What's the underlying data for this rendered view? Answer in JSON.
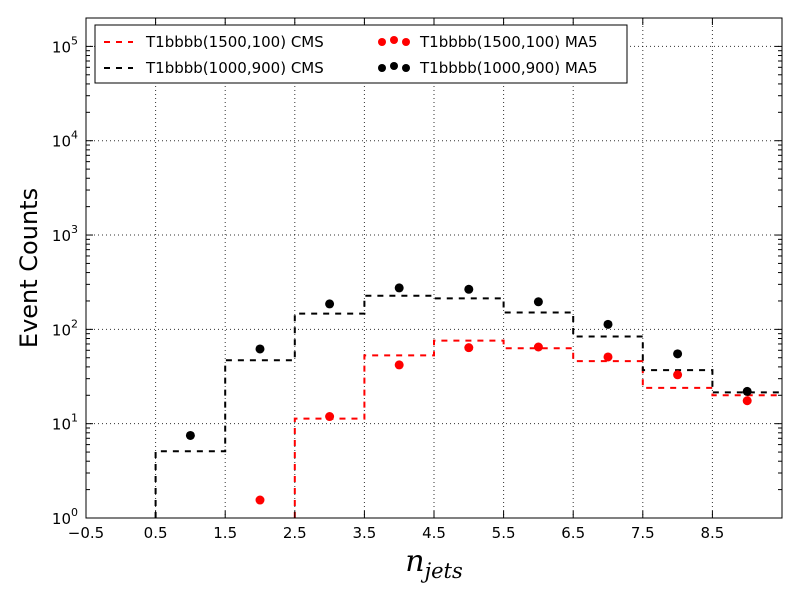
{
  "chart_data": {
    "type": "line",
    "xlabel_base": "n",
    "xlabel_sub": "jets",
    "ylabel": "Event Counts",
    "xlim": [
      -0.5,
      9.5
    ],
    "ylim": [
      1,
      200000
    ],
    "yscale": "log",
    "grid": true,
    "legend_position": "top",
    "x_ticks": [
      -0.5,
      0.5,
      1.5,
      2.5,
      3.5,
      4.5,
      5.5,
      6.5,
      7.5,
      8.5
    ],
    "x_tick_labels": [
      "−0.5",
      "0.5",
      "1.5",
      "2.5",
      "3.5",
      "4.5",
      "5.5",
      "6.5",
      "7.5",
      "8.5"
    ],
    "y_ticks": [
      {
        "value": 1,
        "base": "10",
        "exp": "0"
      },
      {
        "value": 10,
        "base": "10",
        "exp": "1"
      },
      {
        "value": 100,
        "base": "10",
        "exp": "2"
      },
      {
        "value": 1000,
        "base": "10",
        "exp": "3"
      },
      {
        "value": 10000,
        "base": "10",
        "exp": "4"
      },
      {
        "value": 100000,
        "base": "10",
        "exp": "5"
      }
    ],
    "series": [
      {
        "name": "T1bbbb(1500,100) CMS",
        "kind": "step",
        "color": "#ff0000",
        "edges": [
          2.5,
          3.5,
          4.5,
          5.5,
          6.5,
          7.5,
          8.5,
          9.5
        ],
        "values": [
          11.3,
          53,
          76,
          63,
          46,
          24,
          20
        ]
      },
      {
        "name": "T1bbbb(1000,900) CMS",
        "kind": "step",
        "color": "#000000",
        "edges": [
          0.5,
          1.5,
          2.5,
          3.5,
          4.5,
          5.5,
          6.5,
          7.5,
          8.5,
          9.5
        ],
        "values": [
          5.1,
          47,
          147,
          227,
          213,
          151,
          84,
          37,
          21.5
        ]
      },
      {
        "name": "T1bbbb(1500,100) MA5",
        "kind": "scatter",
        "color": "#ff0000",
        "x": [
          2,
          3,
          4,
          5,
          6,
          7,
          8,
          9
        ],
        "y": [
          1.55,
          11.9,
          42,
          64,
          65,
          51,
          33,
          17.5
        ]
      },
      {
        "name": "T1bbbb(1000,900) MA5",
        "kind": "scatter",
        "color": "#000000",
        "x": [
          1,
          2,
          3,
          4,
          5,
          6,
          7,
          8,
          9
        ],
        "y": [
          7.5,
          62,
          186,
          275,
          266,
          196,
          113,
          55,
          22
        ]
      }
    ]
  }
}
